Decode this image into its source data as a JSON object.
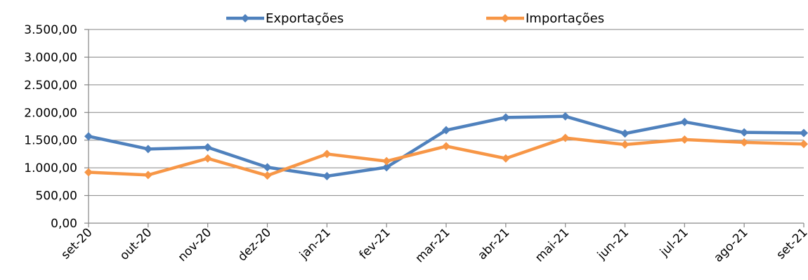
{
  "chart_data": {
    "type": "line",
    "categories": [
      "set-20",
      "out-20",
      "nov-20",
      "dez-20",
      "jan-21",
      "fev-21",
      "mar-21",
      "abr-21",
      "mai-21",
      "jun-21",
      "jul-21",
      "ago-21",
      "set-21"
    ],
    "ylim": [
      0,
      3500
    ],
    "ytick_labels": [
      "0,00",
      "500,00",
      "1.000,00",
      "1.500,00",
      "2.000,00",
      "2.500,00",
      "3.000,00",
      "3.500,00"
    ],
    "yticks": [
      0,
      500,
      1000,
      1500,
      2000,
      2500,
      3000,
      3500
    ],
    "grid": true,
    "legend_position": "top",
    "series": [
      {
        "name": "Exportações",
        "color": "#4F81BD",
        "values": [
          1570,
          1340,
          1370,
          1010,
          850,
          1010,
          1680,
          1910,
          1930,
          1620,
          1830,
          1640,
          1630
        ]
      },
      {
        "name": "Importações",
        "color": "#F79646",
        "values": [
          920,
          870,
          1170,
          860,
          1250,
          1120,
          1390,
          1170,
          1540,
          1420,
          1510,
          1460,
          1430
        ]
      }
    ],
    "title": "",
    "xlabel": "",
    "ylabel": ""
  }
}
